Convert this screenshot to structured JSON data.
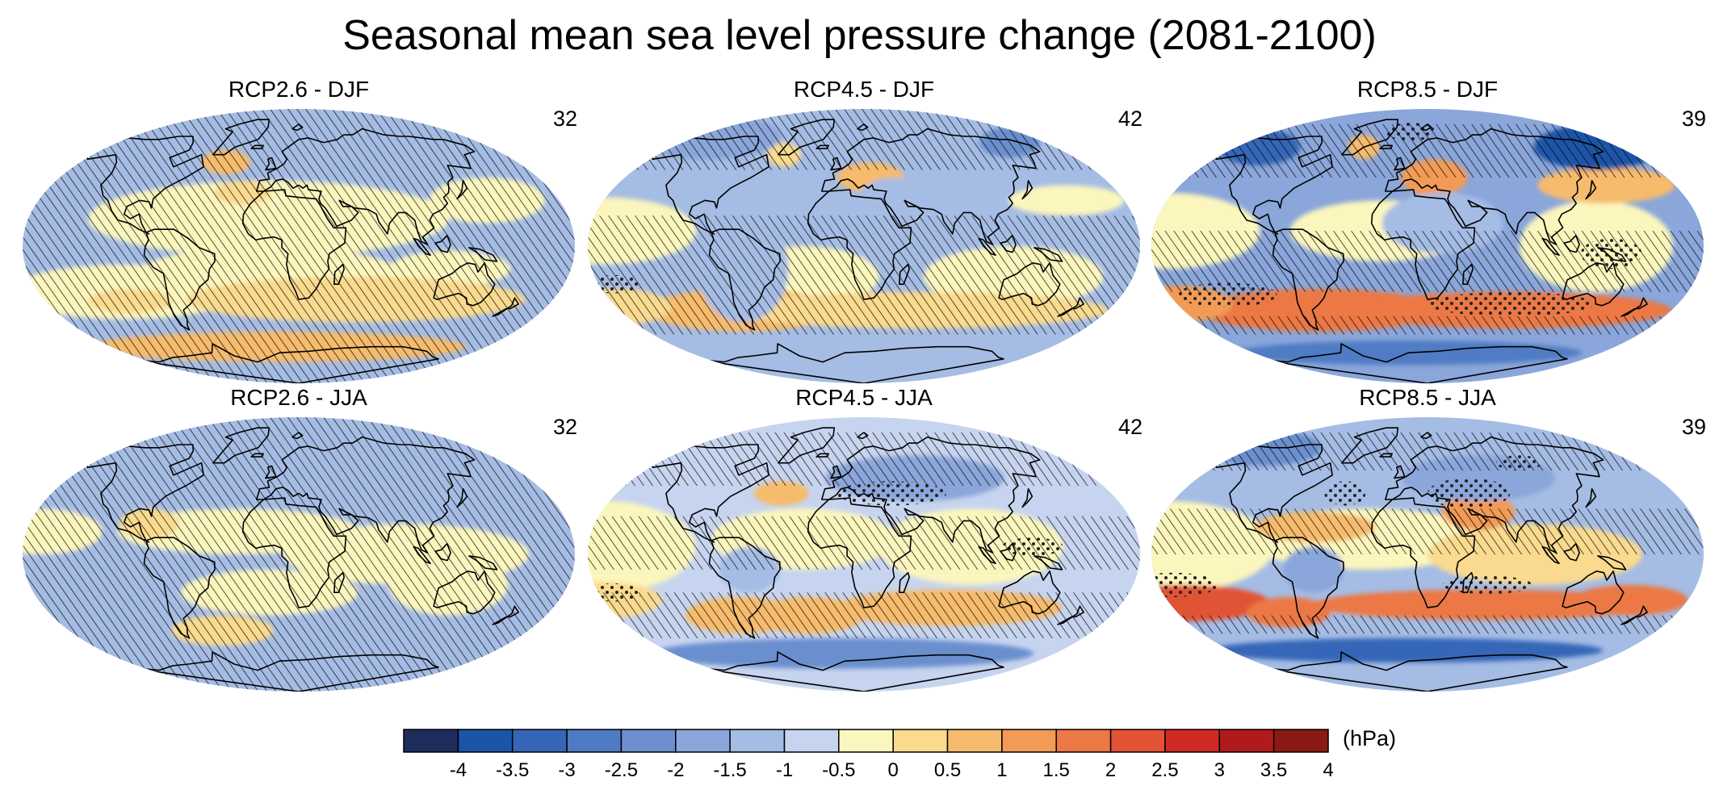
{
  "title": "Seasonal mean sea level pressure change (2081-2100)",
  "panels": [
    {
      "label": "RCP2.6 - DJF",
      "count": "32",
      "scenario": "rcp26",
      "season": "djf"
    },
    {
      "label": "RCP4.5 - DJF",
      "count": "42",
      "scenario": "rcp45",
      "season": "djf"
    },
    {
      "label": "RCP8.5 - DJF",
      "count": "39",
      "scenario": "rcp85",
      "season": "djf"
    },
    {
      "label": "RCP2.6 - JJA",
      "count": "32",
      "scenario": "rcp26",
      "season": "jja"
    },
    {
      "label": "RCP4.5 - JJA",
      "count": "42",
      "scenario": "rcp45",
      "season": "jja"
    },
    {
      "label": "RCP8.5 - JJA",
      "count": "39",
      "scenario": "rcp85",
      "season": "jja"
    }
  ],
  "colorbar": {
    "units": "(hPa)",
    "tick_labels": [
      "-4",
      "-3.5",
      "-3",
      "-2.5",
      "-2",
      "-1.5",
      "-1",
      "-0.5",
      "0",
      "0.5",
      "1",
      "1.5",
      "2",
      "2.5",
      "3",
      "3.5",
      "4"
    ],
    "colors": [
      "#1f2d5c",
      "#1a55a8",
      "#3566b8",
      "#4f7bc4",
      "#6b8fcf",
      "#8aa6da",
      "#a5bce4",
      "#c7d4ef",
      "#fbf6bd",
      "#f9da8e",
      "#f6bb6c",
      "#f29b56",
      "#eb7845",
      "#e15334",
      "#cf2a23",
      "#b11a1a",
      "#8b1a14"
    ]
  },
  "colors": {
    "ocean_base": "#a0b3dc",
    "land": "#a9bbe2",
    "hatching": "#000000",
    "coastline": "#000000"
  }
}
